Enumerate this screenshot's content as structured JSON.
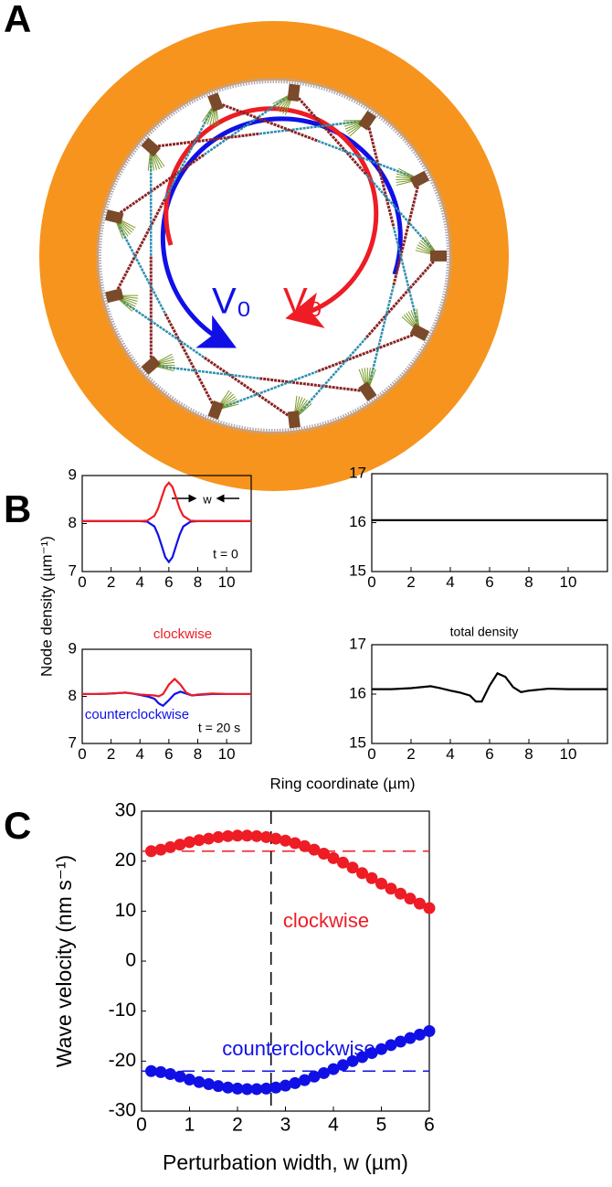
{
  "panel_labels": [
    "A",
    "B",
    "C"
  ],
  "diagram": {
    "labels": [
      {
        "text": "V₀",
        "color": "#1010e6"
      },
      {
        "text": "V₀",
        "color": "#ee1c24"
      }
    ]
  },
  "panel_b": {
    "ylabel": "Node density (µm⁻¹)",
    "xlabel": "Ring coordinate (µm)"
  },
  "chart_data": [
    {
      "type": "line",
      "xlim": [
        0,
        11.7
      ],
      "ylim": [
        7,
        9
      ],
      "xticks": [
        0,
        2,
        4,
        6,
        8,
        10
      ],
      "yticks": [
        7,
        8,
        9
      ],
      "x": [
        0,
        1,
        2,
        3,
        4,
        4.5,
        5,
        5.25,
        5.5,
        5.75,
        6,
        6.25,
        6.5,
        6.75,
        7,
        7.5,
        8,
        9,
        10,
        11,
        11.7
      ],
      "series": [
        {
          "color": "#1010e6",
          "values": [
            8.05,
            8.05,
            8.05,
            8.05,
            8.05,
            8.04,
            7.94,
            7.77,
            7.54,
            7.3,
            7.2,
            7.3,
            7.54,
            7.77,
            7.94,
            8.04,
            8.05,
            8.05,
            8.05,
            8.05,
            8.05
          ]
        },
        {
          "color": "#ee1c24",
          "values": [
            8.05,
            8.05,
            8.05,
            8.05,
            8.05,
            8.06,
            8.16,
            8.31,
            8.54,
            8.76,
            8.85,
            8.76,
            8.54,
            8.31,
            8.16,
            8.06,
            8.05,
            8.05,
            8.05,
            8.05,
            8.05
          ]
        }
      ],
      "annotations": [
        {
          "text": "w",
          "color": "#000"
        },
        {
          "text": "t = 0",
          "color": "#000"
        }
      ]
    },
    {
      "type": "line",
      "xlim": [
        0,
        12
      ],
      "ylim": [
        15,
        17
      ],
      "xticks": [
        0,
        2,
        4,
        6,
        8,
        10
      ],
      "yticks": [
        15,
        16,
        17
      ],
      "x": [
        0,
        12
      ],
      "series": [
        {
          "color": "#000",
          "values": [
            16.05,
            16.05
          ]
        }
      ]
    },
    {
      "type": "line",
      "xlim": [
        0,
        11.7
      ],
      "ylim": [
        7,
        9
      ],
      "xticks": [
        0,
        2,
        4,
        6,
        8,
        10
      ],
      "yticks": [
        7,
        8,
        9
      ],
      "x": [
        0,
        1,
        2,
        3,
        3.5,
        4,
        4.5,
        5,
        5.3,
        5.6,
        6,
        6.4,
        6.8,
        7.2,
        7.6,
        8,
        9,
        10,
        11,
        11.7
      ],
      "series": [
        {
          "color": "#1010e6",
          "values": [
            8.05,
            8.05,
            8.06,
            8.08,
            8.06,
            8.03,
            8.0,
            7.95,
            7.85,
            7.8,
            7.92,
            8.05,
            8.1,
            8.06,
            8.02,
            8.03,
            8.05,
            8.05,
            8.05,
            8.05
          ]
        },
        {
          "color": "#ee1c24",
          "values": [
            8.05,
            8.05,
            8.06,
            8.08,
            8.06,
            8.04,
            8.03,
            8.02,
            8.0,
            8.05,
            8.25,
            8.37,
            8.25,
            8.08,
            8.02,
            8.04,
            8.06,
            8.05,
            8.05,
            8.05
          ]
        }
      ],
      "annotations": [
        {
          "text": "clockwise",
          "color": "#ee1c24"
        },
        {
          "text": "counterclockwise",
          "color": "#1010e6"
        },
        {
          "text": "t = 20 s",
          "color": "#000"
        }
      ]
    },
    {
      "type": "line",
      "xlim": [
        0,
        12
      ],
      "ylim": [
        15,
        17
      ],
      "xticks": [
        0,
        2,
        4,
        6,
        8,
        10
      ],
      "yticks": [
        15,
        16,
        17
      ],
      "x": [
        0,
        1,
        2,
        3,
        3.5,
        4,
        4.5,
        5,
        5.3,
        5.6,
        6,
        6.4,
        6.8,
        7.2,
        7.6,
        8,
        9,
        10,
        11,
        12
      ],
      "series": [
        {
          "color": "#000",
          "values": [
            16.1,
            16.1,
            16.12,
            16.16,
            16.12,
            16.07,
            16.03,
            15.97,
            15.85,
            15.85,
            16.17,
            16.42,
            16.35,
            16.14,
            16.04,
            16.07,
            16.11,
            16.1,
            16.1,
            16.1
          ]
        }
      ],
      "annotations": [
        {
          "text": "total density",
          "color": "#000"
        }
      ]
    },
    {
      "type": "scatter",
      "xlabel": "Perturbation width, w (µm)",
      "ylabel": "Wave velocity (nm s⁻¹)",
      "xlim": [
        0,
        6
      ],
      "ylim": [
        -30,
        30
      ],
      "xticks": [
        0,
        1,
        2,
        3,
        4,
        5,
        6
      ],
      "yticks": [
        -30,
        -20,
        -10,
        0,
        10,
        20,
        30
      ],
      "x": [
        0.2,
        0.4,
        0.6,
        0.8,
        1.0,
        1.2,
        1.4,
        1.6,
        1.8,
        2.0,
        2.2,
        2.4,
        2.6,
        2.8,
        3.0,
        3.2,
        3.4,
        3.6,
        3.8,
        4.0,
        4.2,
        4.4,
        4.6,
        4.8,
        5.0,
        5.2,
        5.4,
        5.6,
        5.8,
        6.0
      ],
      "series": [
        {
          "color": "#ee1c24",
          "values": [
            22.0,
            22.3,
            22.8,
            23.3,
            23.8,
            24.2,
            24.5,
            24.8,
            25.0,
            25.1,
            25.1,
            25.0,
            24.8,
            24.5,
            24.1,
            23.6,
            23.0,
            22.3,
            21.5,
            20.6,
            19.7,
            18.7,
            17.6,
            16.6,
            15.5,
            14.5,
            13.5,
            12.5,
            11.5,
            10.6
          ]
        },
        {
          "color": "#1010e6",
          "values": [
            -22.0,
            -22.2,
            -22.6,
            -23.1,
            -23.7,
            -24.2,
            -24.6,
            -25.0,
            -25.3,
            -25.5,
            -25.6,
            -25.6,
            -25.5,
            -25.3,
            -24.9,
            -24.4,
            -23.8,
            -23.1,
            -22.4,
            -21.6,
            -20.8,
            -20.0,
            -19.2,
            -18.4,
            -17.6,
            -16.8,
            -16.1,
            -15.4,
            -14.7,
            -14.0
          ]
        }
      ],
      "reference_lines": [
        {
          "axis": "y",
          "value": 22,
          "color": "#ee1c24"
        },
        {
          "axis": "y",
          "value": -22,
          "color": "#1010e6"
        },
        {
          "axis": "x",
          "value": 2.7,
          "color": "#000"
        }
      ],
      "annotations": [
        {
          "text": "clockwise",
          "color": "#ee1c24"
        },
        {
          "text": "counterclockwise",
          "color": "#1010e6"
        }
      ]
    }
  ]
}
